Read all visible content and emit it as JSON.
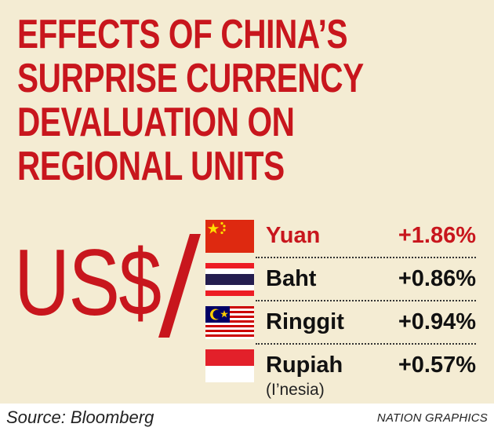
{
  "header": {
    "title_lines": [
      "EFFECTS OF CHINA’S",
      "SURPRISE CURRENCY",
      "DEVALUATION ON",
      "REGIONAL UNITS"
    ]
  },
  "base_label": "US$",
  "chart_data": {
    "type": "table",
    "title": "EFFECTS OF CHINA’S SURPRISE CURRENCY DEVALUATION ON REGIONAL UNITS",
    "base_currency": "US$",
    "rows": [
      {
        "currency": "Yuan",
        "change": "+1.86%",
        "value": 1.86,
        "flag": "china-flag",
        "highlight": true
      },
      {
        "currency": "Baht",
        "change": "+0.86%",
        "value": 0.86,
        "flag": "thailand-flag",
        "highlight": false
      },
      {
        "currency": "Ringgit",
        "change": "+0.94%",
        "value": 0.94,
        "flag": "malaysia-flag",
        "highlight": false
      },
      {
        "currency": "Rupiah",
        "change": "+0.57%",
        "value": 0.57,
        "flag": "indonesia-flag",
        "highlight": false,
        "note": "(I’nesia)"
      }
    ]
  },
  "colors": {
    "accent_red": "#c8161d",
    "background": "#f4ecd3",
    "text": "#111111"
  },
  "footer": {
    "source": "Source: Bloomberg",
    "credit": "NATION GRAPHICS"
  }
}
